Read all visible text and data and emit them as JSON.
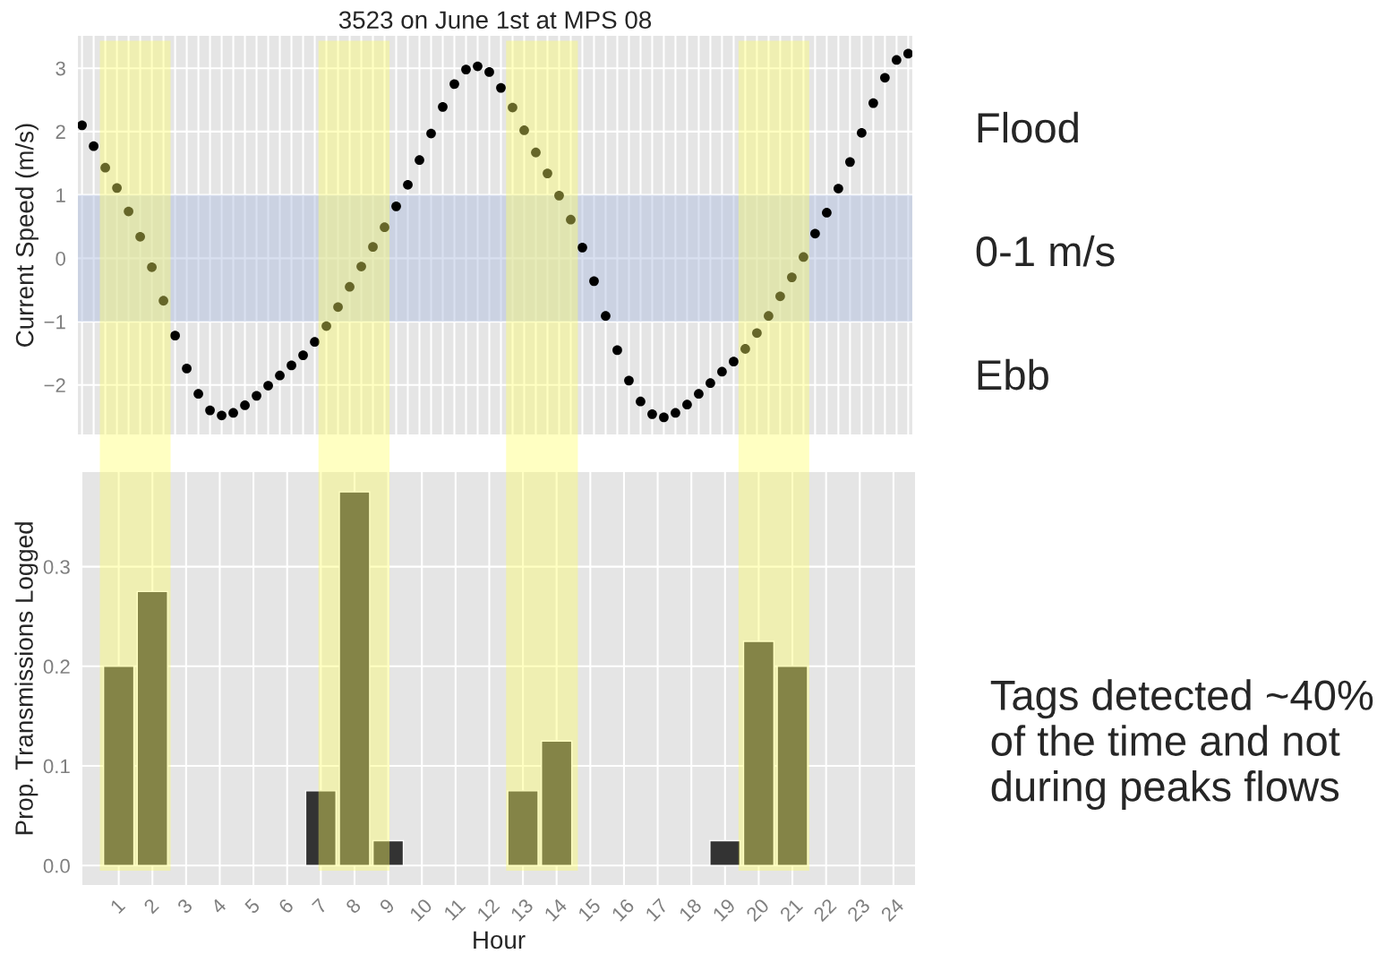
{
  "chart_data": [
    {
      "type": "scatter",
      "title": "3523 on June 1st at MPS 08",
      "ylabel": "Current Speed (m/s)",
      "categories": [
        null,
        null,
        null,
        null,
        null,
        null,
        null,
        null,
        null,
        null,
        null,
        null,
        null,
        null,
        null,
        null,
        null,
        null,
        null,
        null,
        null,
        null,
        null,
        null,
        null,
        null,
        null,
        null,
        null,
        null,
        null,
        null,
        null,
        null,
        null,
        null,
        null,
        null,
        null,
        null,
        null,
        null,
        null,
        null,
        null,
        null,
        null,
        null,
        null,
        null,
        null,
        null,
        null,
        null,
        null,
        null,
        null,
        null,
        null,
        null,
        null,
        null,
        null,
        null,
        null,
        null,
        null,
        null,
        null,
        null,
        null,
        null
      ],
      "values": [
        2.1,
        1.77,
        1.43,
        1.11,
        0.74,
        0.34,
        -0.14,
        -0.67,
        -1.22,
        -1.74,
        -2.14,
        -2.4,
        -2.48,
        -2.44,
        -2.32,
        -2.17,
        -2.01,
        -1.85,
        -1.69,
        -1.53,
        -1.32,
        -1.07,
        -0.77,
        -0.45,
        -0.13,
        0.18,
        0.49,
        0.82,
        1.16,
        1.55,
        1.97,
        2.39,
        2.75,
        2.98,
        3.03,
        2.94,
        2.69,
        2.38,
        2.02,
        1.67,
        1.34,
        0.99,
        0.61,
        0.17,
        -0.36,
        -0.91,
        -1.45,
        -1.93,
        -2.26,
        -2.46,
        -2.51,
        -2.44,
        -2.31,
        -2.14,
        -1.97,
        -1.79,
        -1.63,
        -1.43,
        -1.18,
        -0.91,
        -0.6,
        -0.3,
        0.02,
        0.39,
        0.72,
        1.1,
        1.52,
        1.98,
        2.45,
        2.85,
        3.13,
        3.23
      ],
      "color": "#000000",
      "marker": "circle",
      "ylim": [
        -2.78,
        3.51
      ],
      "yticks": [
        {
          "value": -2,
          "label": "−2"
        },
        {
          "value": -1,
          "label": "−1"
        },
        0,
        1,
        2,
        3
      ],
      "tick_labels": "y",
      "grid": true,
      "bands": [
        {
          "axis": "y",
          "from": -1,
          "to": 1,
          "color": "#aabbdd"
        }
      ],
      "annotations": [
        "Flood",
        "0-1 m/s",
        "Ebb"
      ]
    },
    {
      "type": "bar",
      "xlabel": "Hour",
      "ylabel": "Prop. Transmissions Logged",
      "x": [
        1,
        2,
        7,
        8,
        9,
        13,
        14,
        19,
        20,
        21
      ],
      "values": [
        0.2,
        0.275,
        0.075,
        0.375,
        0.025,
        0.075,
        0.125,
        0.025,
        0.225,
        0.2
      ],
      "color": "#333333",
      "xlim": [
        -0.08,
        24.64
      ],
      "ylim": [
        -0.0195,
        0.395
      ],
      "xticks": [
        1,
        2,
        3,
        4,
        5,
        6,
        7,
        8,
        9,
        10,
        11,
        12,
        13,
        14,
        15,
        16,
        17,
        18,
        19,
        20,
        21,
        22,
        23,
        24
      ],
      "yticks": [
        {
          "value": 0,
          "label": "0.0"
        },
        0.1,
        0.2,
        0.3
      ],
      "grid": true,
      "bands": [
        {
          "axis": "x",
          "from": 0.44,
          "to": 2.54,
          "color": "#ffff66"
        },
        {
          "axis": "x",
          "from": 6.93,
          "to": 9.04,
          "color": "#ffff66"
        },
        {
          "axis": "x",
          "from": 12.5,
          "to": 14.63,
          "color": "#ffff66"
        },
        {
          "axis": "x",
          "from": 19.4,
          "to": 21.5,
          "color": "#ffff66"
        }
      ],
      "annotations": [
        "Tags detected ~40%\nof the time and not\nduring peaks flows"
      ]
    }
  ]
}
